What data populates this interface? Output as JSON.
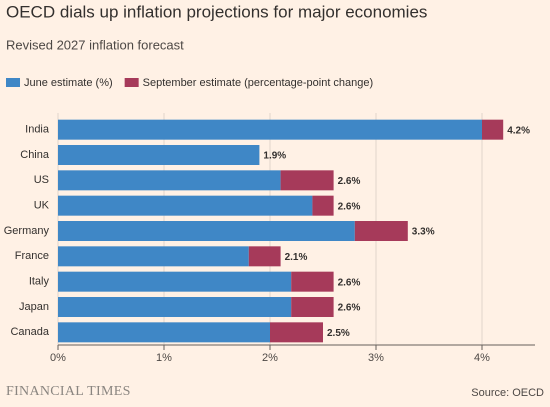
{
  "chart_data": {
    "type": "stacked-barh",
    "title": "OECD dials up inflation projections for major economies",
    "subtitle": "Revised 2027 inflation forecast",
    "categories": [
      "India",
      "China",
      "US",
      "UK",
      "Germany",
      "France",
      "Italy",
      "Japan",
      "Canada"
    ],
    "series": [
      {
        "name": "June estimate (%)",
        "color": "#3f87c6",
        "values": [
          4.0,
          1.9,
          2.1,
          2.4,
          2.8,
          1.8,
          2.2,
          2.2,
          2.0
        ]
      },
      {
        "name": "September estimate (percentage-point change)",
        "color": "#a63a5a",
        "values": [
          0.2,
          0,
          0.5,
          0.2,
          0.5,
          0.3,
          0.4,
          0.4,
          0.5
        ]
      }
    ],
    "totals": {
      "values": [
        4.2,
        1.9,
        2.6,
        2.6,
        3.3,
        2.1,
        2.6,
        2.6,
        2.5
      ],
      "value_labels": [
        "4.2%",
        "1.9%",
        "2.6%",
        "2.6%",
        "3.3%",
        "2.1%",
        "2.6%",
        "2.6%",
        "2.5%"
      ]
    },
    "xlim": [
      0,
      4.5
    ],
    "xticks": [
      {
        "value": 0,
        "label": "0%"
      },
      {
        "value": 1,
        "label": "1%"
      },
      {
        "value": 2,
        "label": "2%"
      },
      {
        "value": 3,
        "label": "3%"
      },
      {
        "value": 4,
        "label": "4%"
      }
    ],
    "grid": true,
    "brand": "FINANCIAL TIMES",
    "source": "Source: OECD"
  }
}
